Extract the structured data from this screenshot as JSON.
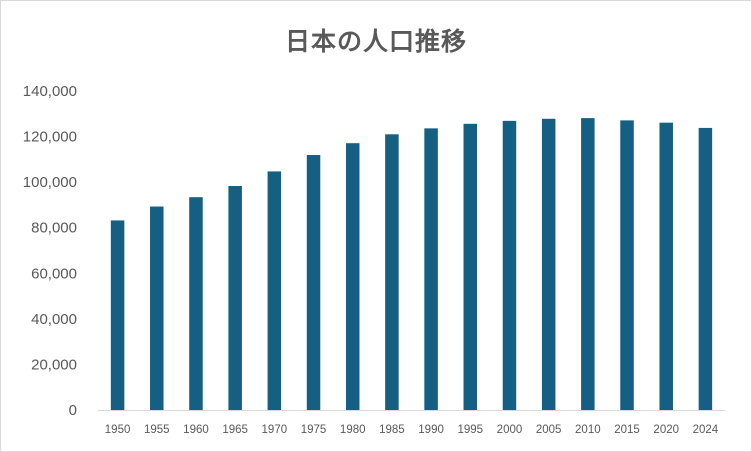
{
  "chart_data": {
    "type": "bar",
    "title": "日本の人口推移",
    "xlabel": "",
    "ylabel": "",
    "categories": [
      "1950",
      "1955",
      "1960",
      "1965",
      "1970",
      "1975",
      "1980",
      "1985",
      "1990",
      "1995",
      "2000",
      "2005",
      "2010",
      "2015",
      "2020",
      "2024"
    ],
    "series": [
      {
        "values": [
          83200,
          89300,
          93400,
          98300,
          104700,
          111900,
          117100,
          121000,
          123600,
          125600,
          126900,
          127800,
          128100,
          127100,
          126100,
          123800
        ]
      }
    ],
    "ylim": [
      0,
      140000
    ],
    "yticks": [
      0,
      20000,
      40000,
      60000,
      80000,
      100000,
      120000,
      140000
    ],
    "ytick_labels": [
      "0",
      "20,000",
      "40,000",
      "60,000",
      "80,000",
      "100,000",
      "120,000",
      "140,000"
    ],
    "grid": false,
    "legend": "none",
    "bar_color": "#156082",
    "axis_color": "#d9d9d9",
    "text_color": "#595959"
  }
}
